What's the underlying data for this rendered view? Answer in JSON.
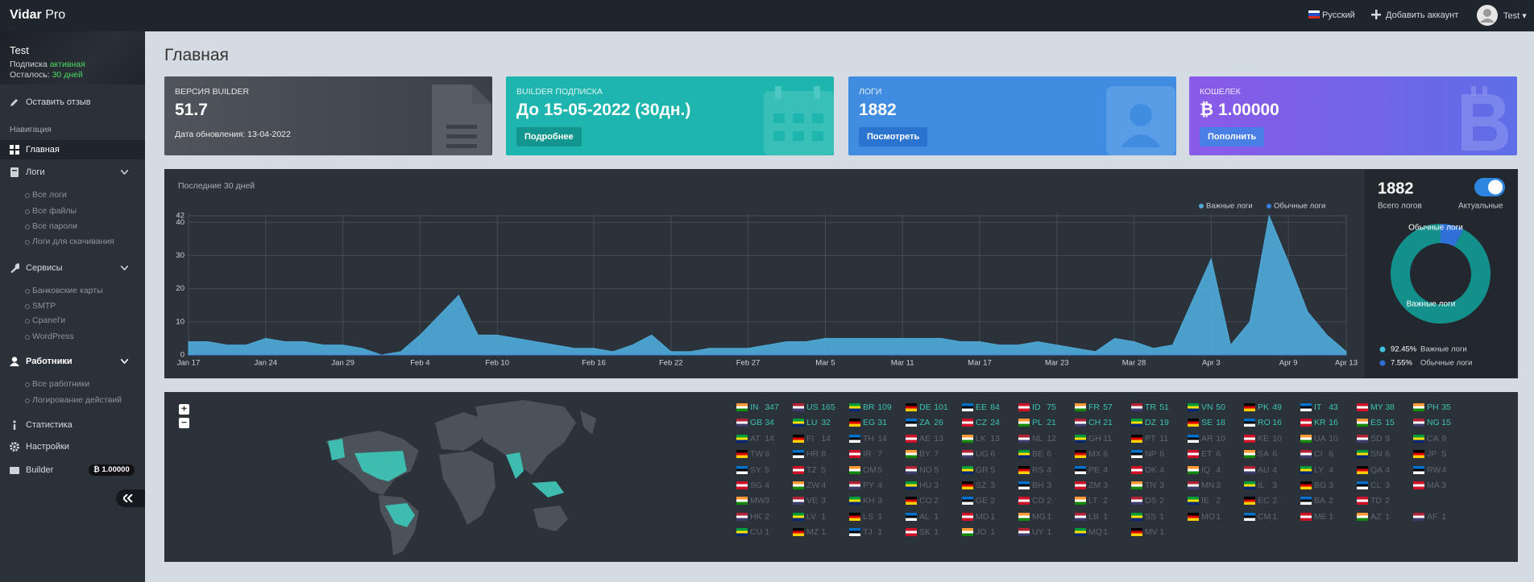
{
  "topbar": {
    "brand": "Vidar",
    "brand_suffix": "Pro",
    "language": "Русский",
    "add_account": "Добавить аккаунт",
    "user": "Test"
  },
  "sidebar": {
    "user": "Test",
    "subscription_label": "Подписка",
    "subscription_status": "активная",
    "remaining_label": "Осталось:",
    "remaining_value": "30 дней",
    "feedback": "Оставить отзыв",
    "nav_heading": "Навигация",
    "nav": [
      {
        "label": "Главная"
      },
      {
        "label": "Логи",
        "children": [
          "Все логи",
          "Все файлы",
          "Все пароли",
          "Логи для скачивания"
        ]
      },
      {
        "label": "Сервисы",
        "children": [
          "Банковские карты",
          "SMTP",
          "Cpanel'и",
          "WordPress"
        ]
      },
      {
        "label": "Работники",
        "children": [
          "Все работники",
          "Логирование действий"
        ]
      },
      {
        "label": "Статистика"
      },
      {
        "label": "Настройки"
      },
      {
        "label": "Builder",
        "badge": "₿ 1.00000"
      }
    ]
  },
  "page_title": "Главная",
  "cards": [
    {
      "label": "ВЕРСИЯ BUILDER",
      "value": "51.7",
      "note": "Дата обновления: 13-04-2022"
    },
    {
      "label": "BUILDER ПОДПИСКА",
      "value": "До 15-05-2022 (30дн.)",
      "button": "Подробнее"
    },
    {
      "label": "ЛОГИ",
      "value": "1882",
      "button": "Посмотреть"
    },
    {
      "label": "КОШЕЛЕК",
      "value": "₿ 1.00000",
      "button": "Пополнить"
    }
  ],
  "chart_data": [
    {
      "type": "area",
      "title": "Последние 30 дней",
      "categories": [
        "Jan 17",
        null,
        null,
        null,
        "Jan 24",
        null,
        null,
        null,
        "Jan 29",
        null,
        null,
        null,
        "Feb 4",
        null,
        null,
        null,
        "Feb 10",
        null,
        null,
        null,
        null,
        "Feb 16",
        null,
        null,
        null,
        "Feb 22",
        null,
        null,
        null,
        "Feb 27",
        null,
        null,
        null,
        "Mar 5",
        null,
        null,
        null,
        "Mar 11",
        null,
        null,
        null,
        "Mar 17",
        null,
        null,
        null,
        "Mar 23",
        null,
        null,
        null,
        "Mar 28",
        null,
        null,
        null,
        "Apr 3",
        null,
        null,
        null,
        "Apr 9",
        null,
        null,
        "Apr 13"
      ],
      "series": [
        {
          "name": "Важные логи",
          "color": "#4ea9d8",
          "values": [
            4,
            4,
            3,
            3,
            5,
            4,
            4,
            3,
            3,
            2,
            0,
            1,
            6,
            12,
            18,
            6,
            6,
            5,
            4,
            3,
            2,
            2,
            1,
            3,
            6,
            1,
            1,
            2,
            2,
            2,
            3,
            4,
            4,
            5,
            5,
            5,
            5,
            5,
            5,
            5,
            4,
            4,
            3,
            3,
            4,
            3,
            2,
            1,
            5,
            4,
            2,
            3,
            16,
            29,
            3,
            10,
            42,
            28,
            13,
            6,
            1
          ]
        },
        {
          "name": "Обычные логи",
          "color": "#3a7fe0",
          "values": [
            0,
            0,
            0,
            0,
            0,
            0,
            0,
            0,
            0,
            0,
            0,
            0,
            0,
            0,
            0,
            0,
            0,
            0,
            0,
            0,
            0,
            0,
            0,
            0,
            0,
            0,
            0,
            0,
            0,
            0,
            0,
            0,
            0,
            0,
            0,
            0,
            0,
            0,
            0,
            0,
            0,
            0,
            0,
            0,
            0,
            0,
            0,
            0,
            0,
            0,
            0,
            0,
            0,
            0,
            0,
            0,
            0,
            0,
            0,
            0,
            0
          ]
        }
      ],
      "ylim": [
        0,
        42
      ],
      "yticks": [
        0,
        10,
        20,
        30,
        40,
        42
      ],
      "grid": true
    },
    {
      "type": "pie",
      "total": "1882",
      "total_label": "Всего логов",
      "toggle_label": "Актуальные",
      "categories": [
        "Важные логи",
        "Обычные логи"
      ],
      "values": [
        92.45,
        7.55
      ],
      "value_labels": [
        "92.45%",
        "7.55%"
      ],
      "colors": [
        "#14908c",
        "#2f6fd8"
      ],
      "legend_colors": [
        "#3fc1e0",
        "#2f6fd8"
      ]
    }
  ],
  "map": {
    "zoom_in": "+",
    "zoom_out": "−"
  },
  "countries": {
    "rows": [
      [
        {
          "code": "IN",
          "count": 347
        },
        {
          "code": "US",
          "count": 165
        },
        {
          "code": "BR",
          "count": 109
        },
        {
          "code": "DE",
          "count": 101
        },
        {
          "code": "EE",
          "count": 84
        },
        {
          "code": "ID",
          "count": 75
        },
        {
          "code": "FR",
          "count": 57
        },
        {
          "code": "TR",
          "count": 51
        },
        {
          "code": "VN",
          "count": 50
        },
        {
          "code": "PK",
          "count": 49
        },
        {
          "code": "IT",
          "count": 43
        },
        {
          "code": "MY",
          "count": 38
        },
        {
          "code": "PH",
          "count": 35
        }
      ],
      [
        {
          "code": "GB",
          "count": 34
        },
        {
          "code": "LU",
          "count": 32
        },
        {
          "code": "EG",
          "count": 31
        },
        {
          "code": "ZA",
          "count": 26
        },
        {
          "code": "CZ",
          "count": 24
        },
        {
          "code": "PL",
          "count": 21
        },
        {
          "code": "CH",
          "count": 21
        },
        {
          "code": "DZ",
          "count": 19
        },
        {
          "code": "SE",
          "count": 18
        },
        {
          "code": "RO",
          "count": 16
        },
        {
          "code": "KR",
          "count": 16
        },
        {
          "code": "ES",
          "count": 15
        },
        {
          "code": "NG",
          "count": 15
        }
      ],
      [
        {
          "code": "AT",
          "count": 14
        },
        {
          "code": "FI",
          "count": 14
        },
        {
          "code": "TH",
          "count": 14
        },
        {
          "code": "AE",
          "count": 13
        },
        {
          "code": "LK",
          "count": 13
        },
        {
          "code": "NL",
          "count": 12
        },
        {
          "code": "GH",
          "count": 11
        },
        {
          "code": "PT",
          "count": 11
        },
        {
          "code": "AR",
          "count": 10
        },
        {
          "code": "KE",
          "count": 10
        },
        {
          "code": "UA",
          "count": 10
        },
        {
          "code": "SD",
          "count": 9
        },
        {
          "code": "CA",
          "count": 9
        }
      ],
      [
        {
          "code": "TW",
          "count": 8
        },
        {
          "code": "HR",
          "count": 8
        },
        {
          "code": "IR",
          "count": 7
        },
        {
          "code": "BY",
          "count": 7
        },
        {
          "code": "UG",
          "count": 6
        },
        {
          "code": "BE",
          "count": 6
        },
        {
          "code": "MX",
          "count": 6
        },
        {
          "code": "NP",
          "count": 6
        },
        {
          "code": "ET",
          "count": 6
        },
        {
          "code": "SA",
          "count": 6
        },
        {
          "code": "CI",
          "count": 6
        },
        {
          "code": "SN",
          "count": 6
        },
        {
          "code": "JP",
          "count": 5
        }
      ],
      [
        {
          "code": "SY",
          "count": 5
        },
        {
          "code": "TZ",
          "count": 5
        },
        {
          "code": "OM",
          "count": 5
        },
        {
          "code": "NO",
          "count": 5
        },
        {
          "code": "GR",
          "count": 5
        },
        {
          "code": "RS",
          "count": 4
        },
        {
          "code": "PE",
          "count": 4
        },
        {
          "code": "DK",
          "count": 4
        },
        {
          "code": "IQ",
          "count": 4
        },
        {
          "code": "AU",
          "count": 4
        },
        {
          "code": "LY",
          "count": 4
        },
        {
          "code": "QA",
          "count": 4
        },
        {
          "code": "RW",
          "count": 4
        }
      ],
      [
        {
          "code": "SG",
          "count": 4
        },
        {
          "code": "ZW",
          "count": 4
        },
        {
          "code": "PY",
          "count": 4
        },
        {
          "code": "HU",
          "count": 3
        },
        {
          "code": "SZ",
          "count": 3
        },
        {
          "code": "BH",
          "count": 3
        },
        {
          "code": "ZM",
          "count": 3
        },
        {
          "code": "TN",
          "count": 3
        },
        {
          "code": "MN",
          "count": 3
        },
        {
          "code": "IL",
          "count": 3
        },
        {
          "code": "BG",
          "count": 3
        },
        {
          "code": "CL",
          "count": 3
        },
        {
          "code": "MA",
          "count": 3
        }
      ],
      [
        {
          "code": "MW",
          "count": 3
        },
        {
          "code": "VE",
          "count": 3
        },
        {
          "code": "KH",
          "count": 3
        },
        {
          "code": "CO",
          "count": 2
        },
        {
          "code": "GE",
          "count": 2
        },
        {
          "code": "CD",
          "count": 2
        },
        {
          "code": "LT",
          "count": 2
        },
        {
          "code": "DS",
          "count": 2
        },
        {
          "code": "IE",
          "count": 2
        },
        {
          "code": "EC",
          "count": 2
        },
        {
          "code": "BA",
          "count": 2
        },
        {
          "code": "TD",
          "count": 2
        }
      ],
      [
        {
          "code": "HK",
          "count": 2
        },
        {
          "code": "LV",
          "count": 1
        },
        {
          "code": "LS",
          "count": 1
        },
        {
          "code": "AL",
          "count": 1
        },
        {
          "code": "MD",
          "count": 1
        },
        {
          "code": "MG",
          "count": 1
        },
        {
          "code": "LB",
          "count": 1
        },
        {
          "code": "SS",
          "count": 1
        },
        {
          "code": "MO",
          "count": 1
        },
        {
          "code": "CM",
          "count": 1
        },
        {
          "code": "ME",
          "count": 1
        },
        {
          "code": "AZ",
          "count": 1
        },
        {
          "code": "AF",
          "count": 1
        }
      ],
      [
        {
          "code": "CU",
          "count": 1
        },
        {
          "code": "MZ",
          "count": 1
        },
        {
          "code": "TJ",
          "count": 1
        },
        {
          "code": "SK",
          "count": 1
        },
        {
          "code": "JO",
          "count": 1
        },
        {
          "code": "UY",
          "count": 1
        },
        {
          "code": "MQ",
          "count": 1
        },
        {
          "code": "MV",
          "count": 1
        }
      ]
    ]
  }
}
